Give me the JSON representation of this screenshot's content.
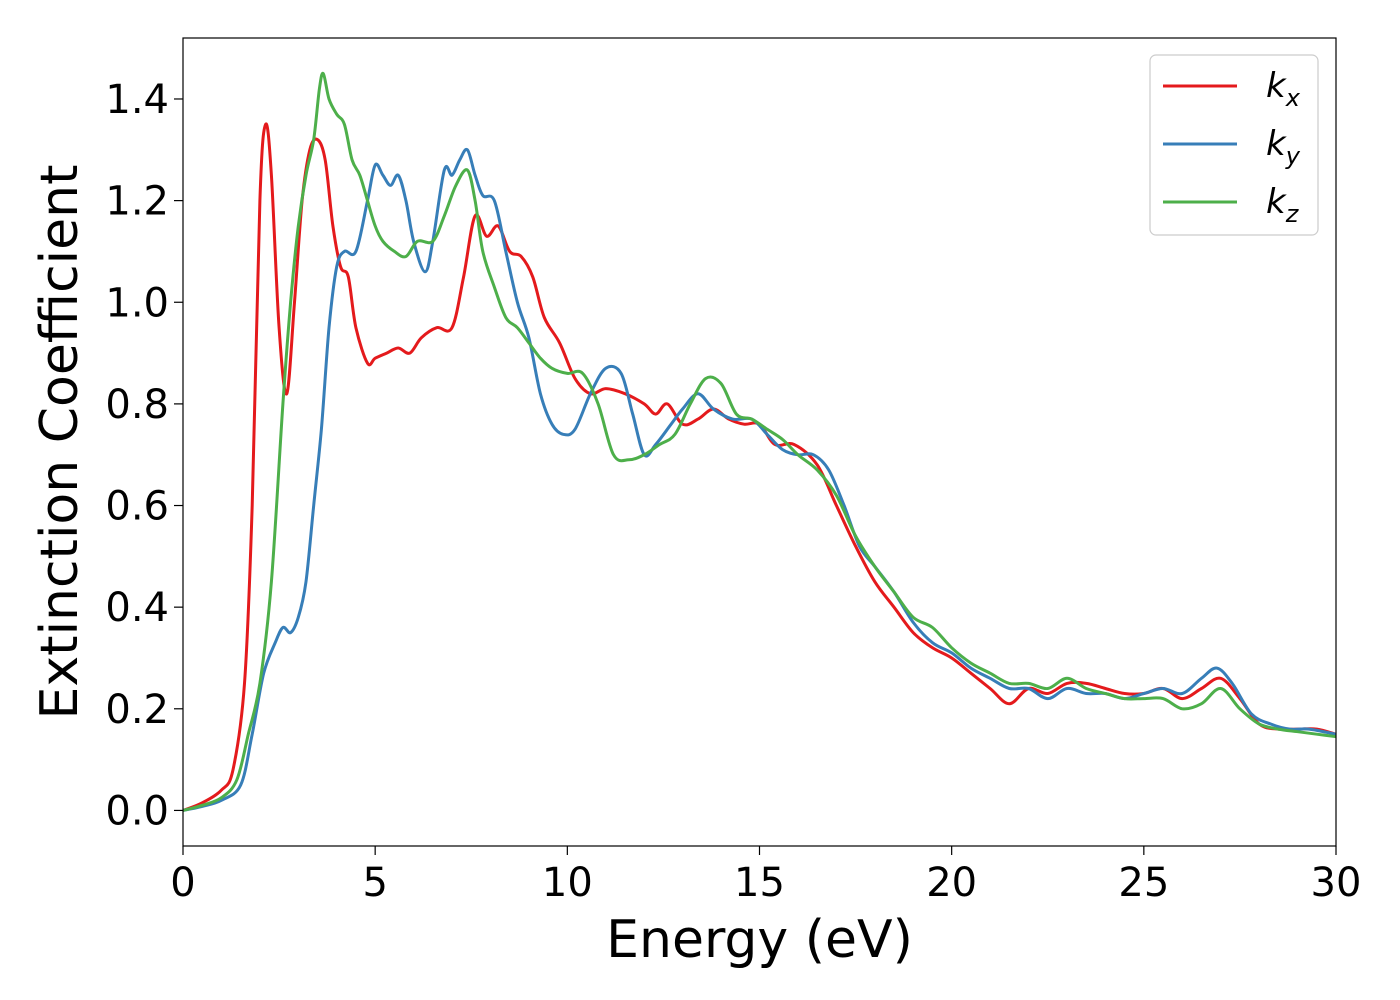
{
  "chart_data": {
    "type": "line",
    "xlabel": "Energy (eV)",
    "ylabel": "Extinction Coefficient",
    "xlim": [
      0,
      30
    ],
    "ylim": [
      -0.07,
      1.52
    ],
    "xticks": [
      0,
      5,
      10,
      15,
      20,
      25,
      30
    ],
    "xtick_labels": [
      "0",
      "5",
      "10",
      "15",
      "20",
      "25",
      "30"
    ],
    "yticks": [
      0.0,
      0.2,
      0.4,
      0.6,
      0.8,
      1.0,
      1.2,
      1.4
    ],
    "ytick_labels": [
      "0.0",
      "0.2",
      "0.4",
      "0.6",
      "0.8",
      "1.0",
      "1.2",
      "1.4"
    ],
    "grid": false,
    "legend_position": "top-right",
    "series": [
      {
        "name": "k",
        "subscript": "x",
        "color": "#e41a1c",
        "points": [
          [
            0,
            0
          ],
          [
            0.5,
            0.015
          ],
          [
            1,
            0.04
          ],
          [
            1.3,
            0.08
          ],
          [
            1.6,
            0.25
          ],
          [
            1.8,
            0.6
          ],
          [
            2.0,
            1.2
          ],
          [
            2.15,
            1.35
          ],
          [
            2.3,
            1.25
          ],
          [
            2.5,
            0.95
          ],
          [
            2.7,
            0.82
          ],
          [
            2.9,
            1.0
          ],
          [
            3.1,
            1.2
          ],
          [
            3.3,
            1.3
          ],
          [
            3.5,
            1.32
          ],
          [
            3.7,
            1.28
          ],
          [
            3.9,
            1.15
          ],
          [
            4.1,
            1.07
          ],
          [
            4.3,
            1.05
          ],
          [
            4.5,
            0.95
          ],
          [
            4.8,
            0.88
          ],
          [
            5.0,
            0.89
          ],
          [
            5.3,
            0.9
          ],
          [
            5.6,
            0.91
          ],
          [
            5.9,
            0.9
          ],
          [
            6.2,
            0.93
          ],
          [
            6.6,
            0.95
          ],
          [
            7.0,
            0.95
          ],
          [
            7.3,
            1.05
          ],
          [
            7.6,
            1.17
          ],
          [
            7.9,
            1.13
          ],
          [
            8.2,
            1.15
          ],
          [
            8.5,
            1.1
          ],
          [
            8.8,
            1.09
          ],
          [
            9.1,
            1.05
          ],
          [
            9.4,
            0.97
          ],
          [
            9.8,
            0.92
          ],
          [
            10.2,
            0.85
          ],
          [
            10.6,
            0.82
          ],
          [
            11.0,
            0.83
          ],
          [
            11.5,
            0.82
          ],
          [
            12.0,
            0.8
          ],
          [
            12.3,
            0.78
          ],
          [
            12.6,
            0.8
          ],
          [
            13.0,
            0.76
          ],
          [
            13.4,
            0.77
          ],
          [
            13.8,
            0.79
          ],
          [
            14.2,
            0.77
          ],
          [
            14.6,
            0.76
          ],
          [
            15.0,
            0.76
          ],
          [
            15.4,
            0.72
          ],
          [
            15.9,
            0.72
          ],
          [
            16.5,
            0.68
          ],
          [
            17.0,
            0.6
          ],
          [
            17.5,
            0.52
          ],
          [
            18.0,
            0.45
          ],
          [
            18.5,
            0.4
          ],
          [
            19.0,
            0.35
          ],
          [
            19.5,
            0.32
          ],
          [
            20.0,
            0.3
          ],
          [
            20.5,
            0.27
          ],
          [
            21.0,
            0.24
          ],
          [
            21.5,
            0.21
          ],
          [
            22.0,
            0.24
          ],
          [
            22.5,
            0.23
          ],
          [
            23.0,
            0.25
          ],
          [
            23.5,
            0.25
          ],
          [
            24.0,
            0.24
          ],
          [
            24.5,
            0.23
          ],
          [
            25.0,
            0.23
          ],
          [
            25.5,
            0.24
          ],
          [
            26.0,
            0.22
          ],
          [
            26.5,
            0.24
          ],
          [
            27.0,
            0.26
          ],
          [
            27.5,
            0.22
          ],
          [
            28.0,
            0.17
          ],
          [
            28.5,
            0.16
          ],
          [
            29.0,
            0.16
          ],
          [
            29.5,
            0.16
          ],
          [
            30,
            0.15
          ]
        ]
      },
      {
        "name": "k",
        "subscript": "y",
        "color": "#377eb8",
        "points": [
          [
            0,
            0
          ],
          [
            0.5,
            0.008
          ],
          [
            1,
            0.02
          ],
          [
            1.5,
            0.05
          ],
          [
            1.8,
            0.15
          ],
          [
            2.1,
            0.27
          ],
          [
            2.4,
            0.33
          ],
          [
            2.6,
            0.36
          ],
          [
            2.8,
            0.35
          ],
          [
            3.0,
            0.38
          ],
          [
            3.2,
            0.45
          ],
          [
            3.4,
            0.6
          ],
          [
            3.6,
            0.75
          ],
          [
            3.8,
            0.95
          ],
          [
            4.0,
            1.07
          ],
          [
            4.2,
            1.1
          ],
          [
            4.5,
            1.1
          ],
          [
            4.8,
            1.2
          ],
          [
            5.0,
            1.27
          ],
          [
            5.2,
            1.25
          ],
          [
            5.4,
            1.23
          ],
          [
            5.6,
            1.25
          ],
          [
            5.8,
            1.2
          ],
          [
            6.0,
            1.12
          ],
          [
            6.3,
            1.06
          ],
          [
            6.5,
            1.12
          ],
          [
            6.8,
            1.26
          ],
          [
            7.0,
            1.25
          ],
          [
            7.2,
            1.28
          ],
          [
            7.4,
            1.3
          ],
          [
            7.6,
            1.25
          ],
          [
            7.8,
            1.21
          ],
          [
            8.1,
            1.2
          ],
          [
            8.4,
            1.1
          ],
          [
            8.7,
            1.0
          ],
          [
            9.0,
            0.93
          ],
          [
            9.3,
            0.82
          ],
          [
            9.6,
            0.76
          ],
          [
            9.9,
            0.74
          ],
          [
            10.2,
            0.75
          ],
          [
            10.6,
            0.82
          ],
          [
            11.0,
            0.87
          ],
          [
            11.4,
            0.86
          ],
          [
            11.7,
            0.78
          ],
          [
            12.0,
            0.7
          ],
          [
            12.3,
            0.72
          ],
          [
            12.7,
            0.76
          ],
          [
            13.0,
            0.79
          ],
          [
            13.4,
            0.82
          ],
          [
            13.8,
            0.79
          ],
          [
            14.3,
            0.77
          ],
          [
            14.8,
            0.77
          ],
          [
            15.2,
            0.74
          ],
          [
            15.6,
            0.71
          ],
          [
            16.0,
            0.7
          ],
          [
            16.4,
            0.7
          ],
          [
            16.8,
            0.67
          ],
          [
            17.2,
            0.6
          ],
          [
            17.6,
            0.52
          ],
          [
            18.0,
            0.48
          ],
          [
            18.5,
            0.43
          ],
          [
            19.0,
            0.37
          ],
          [
            19.5,
            0.33
          ],
          [
            20.0,
            0.31
          ],
          [
            20.5,
            0.28
          ],
          [
            21.0,
            0.26
          ],
          [
            21.5,
            0.24
          ],
          [
            22.0,
            0.24
          ],
          [
            22.5,
            0.22
          ],
          [
            23.0,
            0.24
          ],
          [
            23.5,
            0.23
          ],
          [
            24.0,
            0.23
          ],
          [
            24.5,
            0.22
          ],
          [
            25.0,
            0.23
          ],
          [
            25.5,
            0.24
          ],
          [
            26.0,
            0.23
          ],
          [
            26.5,
            0.26
          ],
          [
            26.9,
            0.28
          ],
          [
            27.3,
            0.25
          ],
          [
            27.8,
            0.19
          ],
          [
            28.3,
            0.17
          ],
          [
            28.8,
            0.16
          ],
          [
            29.3,
            0.16
          ],
          [
            30,
            0.15
          ]
        ]
      },
      {
        "name": "k",
        "subscript": "z",
        "color": "#4daf4a",
        "points": [
          [
            0,
            0
          ],
          [
            0.5,
            0.01
          ],
          [
            1,
            0.025
          ],
          [
            1.4,
            0.06
          ],
          [
            1.7,
            0.15
          ],
          [
            2.0,
            0.25
          ],
          [
            2.3,
            0.45
          ],
          [
            2.6,
            0.8
          ],
          [
            2.8,
            1.0
          ],
          [
            3.0,
            1.15
          ],
          [
            3.2,
            1.25
          ],
          [
            3.4,
            1.32
          ],
          [
            3.55,
            1.42
          ],
          [
            3.65,
            1.45
          ],
          [
            3.8,
            1.4
          ],
          [
            4.0,
            1.37
          ],
          [
            4.2,
            1.35
          ],
          [
            4.4,
            1.28
          ],
          [
            4.6,
            1.25
          ],
          [
            4.8,
            1.2
          ],
          [
            5.0,
            1.15
          ],
          [
            5.2,
            1.12
          ],
          [
            5.5,
            1.1
          ],
          [
            5.8,
            1.09
          ],
          [
            6.1,
            1.12
          ],
          [
            6.5,
            1.12
          ],
          [
            6.8,
            1.17
          ],
          [
            7.1,
            1.23
          ],
          [
            7.4,
            1.26
          ],
          [
            7.6,
            1.2
          ],
          [
            7.8,
            1.1
          ],
          [
            8.1,
            1.03
          ],
          [
            8.4,
            0.97
          ],
          [
            8.7,
            0.95
          ],
          [
            9.0,
            0.92
          ],
          [
            9.3,
            0.89
          ],
          [
            9.6,
            0.87
          ],
          [
            10.0,
            0.86
          ],
          [
            10.4,
            0.86
          ],
          [
            10.8,
            0.8
          ],
          [
            11.2,
            0.7
          ],
          [
            11.6,
            0.69
          ],
          [
            12.0,
            0.7
          ],
          [
            12.4,
            0.72
          ],
          [
            12.8,
            0.74
          ],
          [
            13.2,
            0.8
          ],
          [
            13.6,
            0.85
          ],
          [
            14.0,
            0.84
          ],
          [
            14.4,
            0.78
          ],
          [
            14.8,
            0.77
          ],
          [
            15.2,
            0.75
          ],
          [
            15.6,
            0.73
          ],
          [
            16.0,
            0.7
          ],
          [
            16.5,
            0.67
          ],
          [
            17.0,
            0.62
          ],
          [
            17.5,
            0.54
          ],
          [
            18.0,
            0.48
          ],
          [
            18.5,
            0.43
          ],
          [
            19.0,
            0.38
          ],
          [
            19.5,
            0.36
          ],
          [
            20.0,
            0.32
          ],
          [
            20.5,
            0.29
          ],
          [
            21.0,
            0.27
          ],
          [
            21.5,
            0.25
          ],
          [
            22.0,
            0.25
          ],
          [
            22.5,
            0.24
          ],
          [
            23.0,
            0.26
          ],
          [
            23.5,
            0.24
          ],
          [
            24.0,
            0.23
          ],
          [
            24.5,
            0.22
          ],
          [
            25.0,
            0.22
          ],
          [
            25.5,
            0.22
          ],
          [
            26.0,
            0.2
          ],
          [
            26.5,
            0.21
          ],
          [
            27.0,
            0.24
          ],
          [
            27.5,
            0.2
          ],
          [
            28.0,
            0.17
          ],
          [
            28.5,
            0.16
          ],
          [
            29.0,
            0.155
          ],
          [
            29.5,
            0.15
          ],
          [
            30,
            0.145
          ]
        ]
      }
    ]
  }
}
